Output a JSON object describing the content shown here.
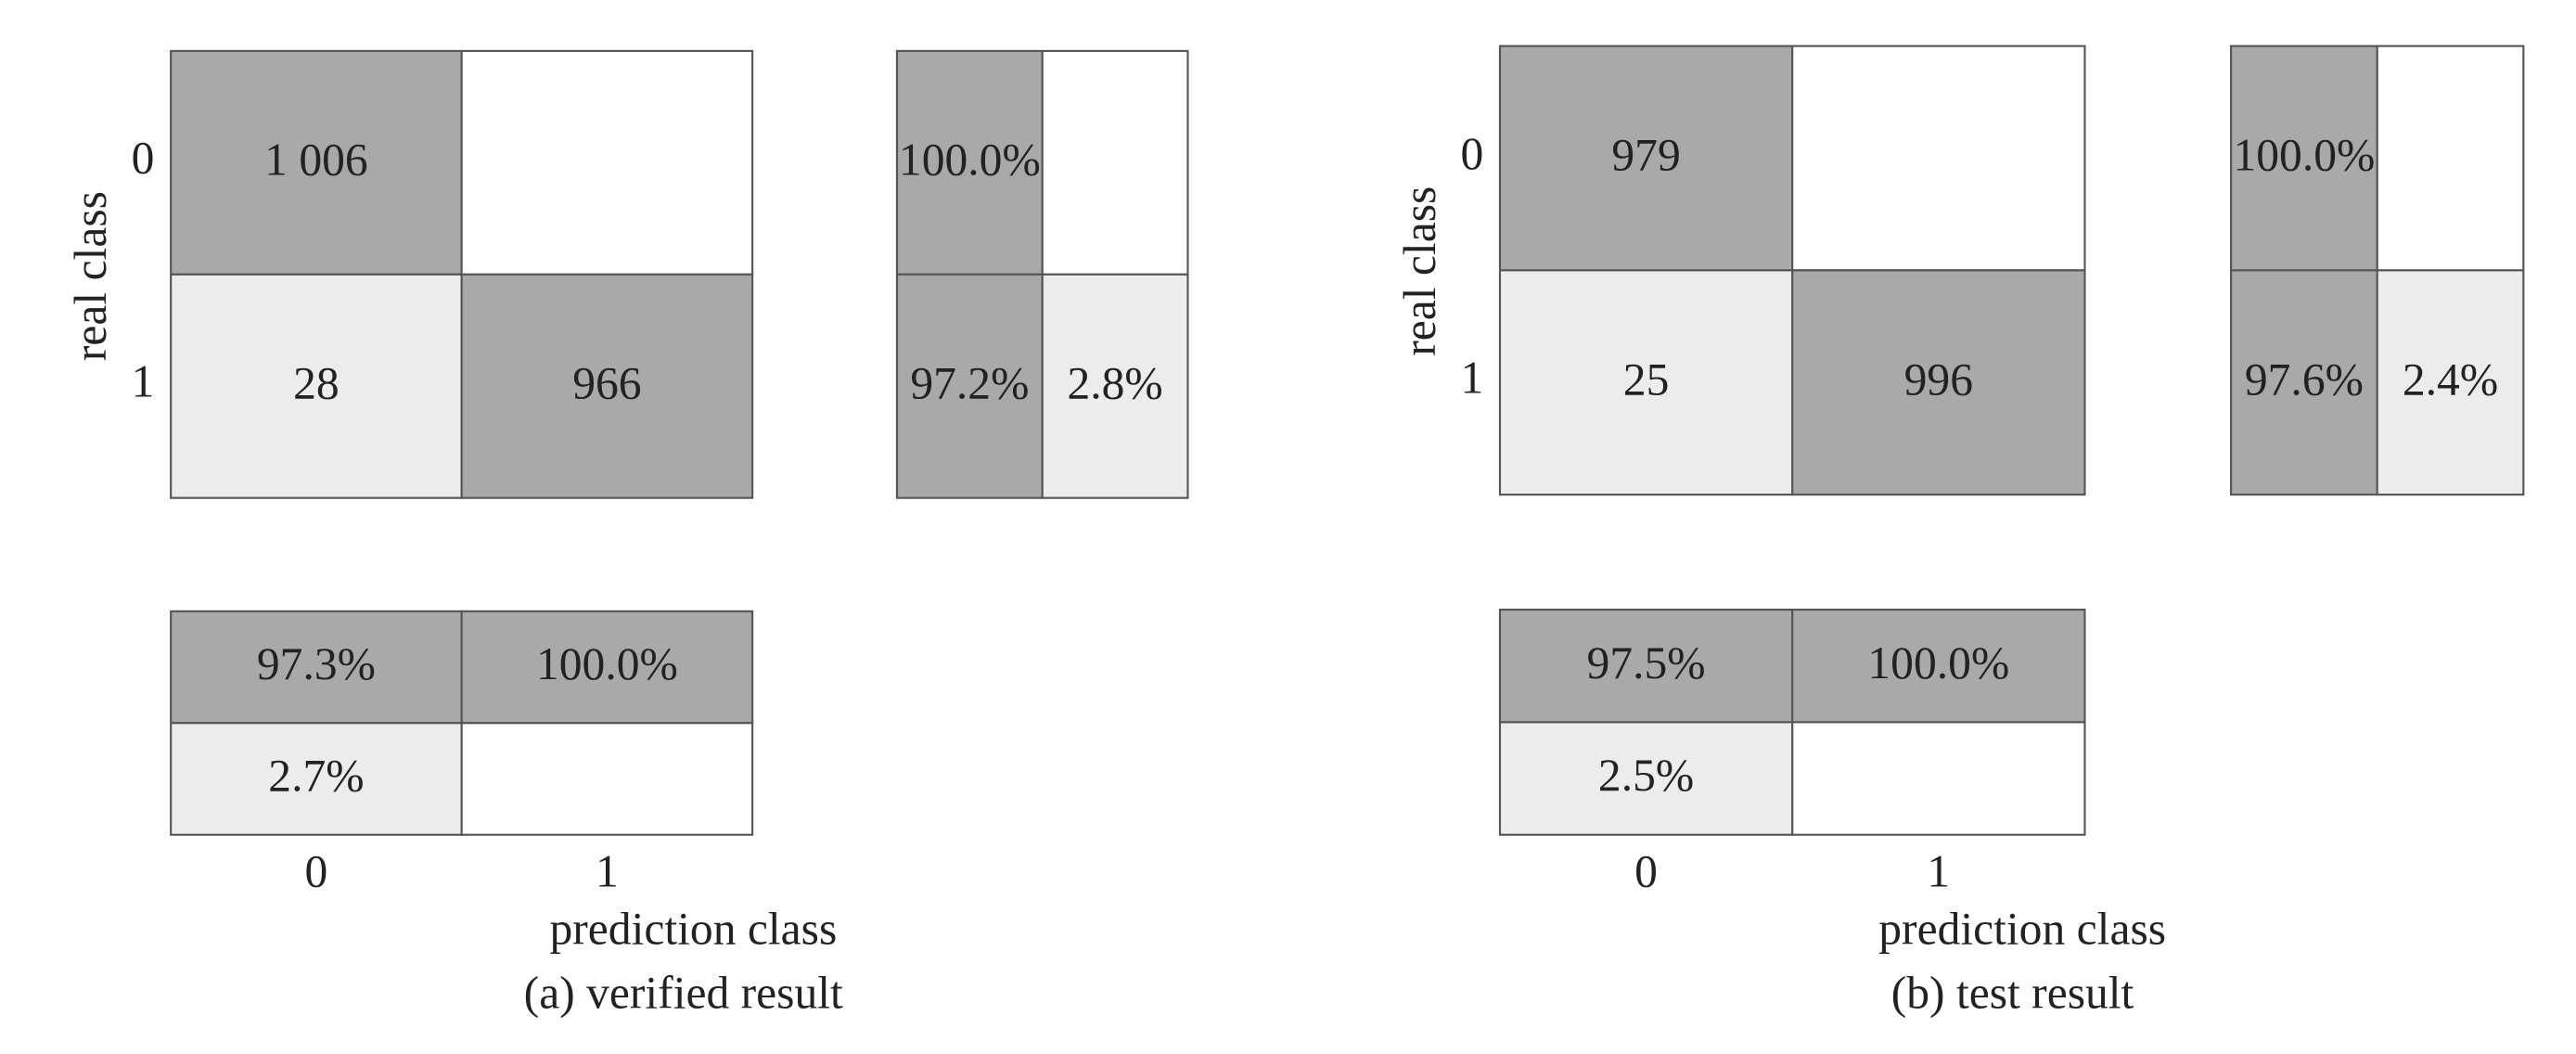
{
  "panels": [
    {
      "caption": "(a) verified result",
      "y_axis_label": "real class",
      "x_axis_label": "prediction class",
      "row_labels": [
        "0",
        "1"
      ],
      "col_labels": [
        "0",
        "1"
      ],
      "matrix": [
        [
          "1 006",
          null
        ],
        [
          "28",
          "966"
        ]
      ],
      "row_percent": [
        [
          "100.0%",
          null
        ],
        [
          "97.2%",
          "2.8%"
        ]
      ],
      "col_percent": [
        [
          "97.3%",
          "100.0%"
        ],
        [
          "2.7%",
          null
        ]
      ]
    },
    {
      "caption": "(b) test result",
      "y_axis_label": "real class",
      "x_axis_label": "prediction class",
      "row_labels": [
        "0",
        "1"
      ],
      "col_labels": [
        "0",
        "1"
      ],
      "matrix": [
        [
          "979",
          null
        ],
        [
          "25",
          "996"
        ]
      ],
      "row_percent": [
        [
          "100.0%",
          null
        ],
        [
          "97.6%",
          "2.4%"
        ]
      ],
      "col_percent": [
        [
          "97.5%",
          "100.0%"
        ],
        [
          "2.5%",
          null
        ]
      ]
    }
  ]
}
